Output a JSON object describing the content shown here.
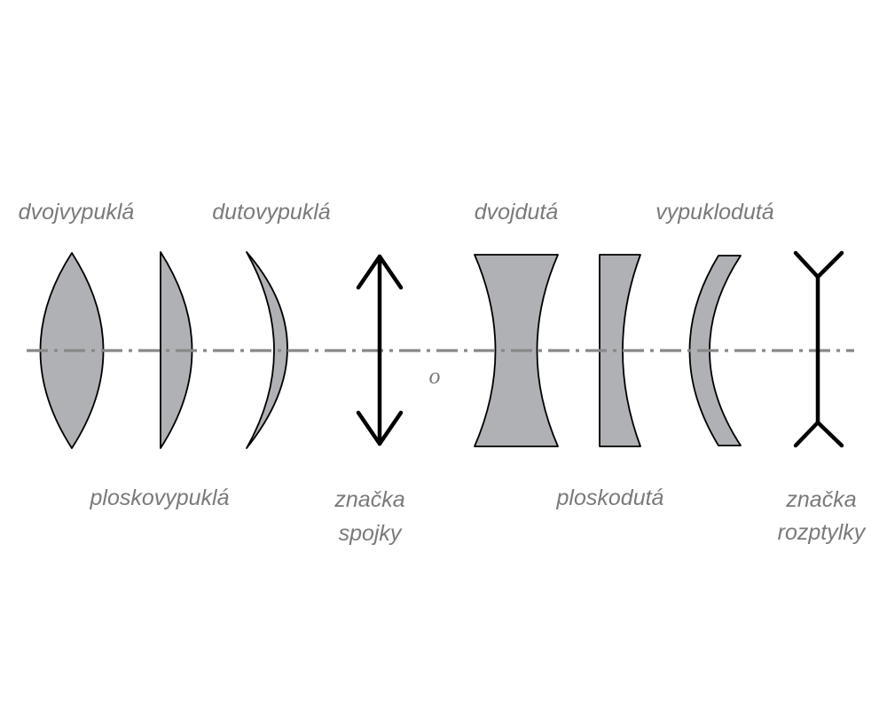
{
  "labels": {
    "biconvex": "dvojvypuklá",
    "plano_convex": "ploskovypuklá",
    "concavo_convex": "dutovypuklá",
    "converging_symbol_line1": "značka",
    "converging_symbol_line2": "spojky",
    "biconcave": "dvojdutá",
    "plano_concave": "ploskodutá",
    "convexo_concave": "vypuklodutá",
    "diverging_symbol_line1": "značka",
    "diverging_symbol_line2": "rozptylky",
    "optical_axis": "o"
  },
  "colors": {
    "lens_fill": "#b0b1b4",
    "stroke": "#000000",
    "axis": "#888888",
    "label": "#7a7a7a"
  }
}
